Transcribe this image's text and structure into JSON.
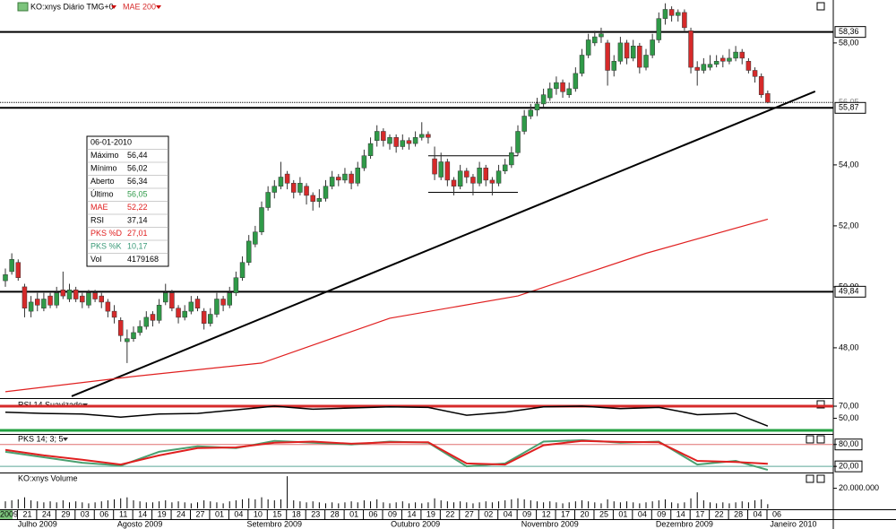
{
  "chart_data": {
    "type": "candlestick",
    "header": "KO:xnys Diário TMG+0",
    "ylim": [
      46.38,
      59.32
    ],
    "yticks": [
      {
        "value": 48,
        "label": "48,00"
      },
      {
        "value": 50,
        "label": "50,00"
      },
      {
        "value": 52,
        "label": "52,00"
      },
      {
        "value": 54,
        "label": "54,00"
      },
      {
        "value": 58,
        "label": "58,00"
      }
    ],
    "up_color": "#2f9a48",
    "down_color": "#d62a2a",
    "candles": [
      [
        50.2,
        50.6,
        50.0,
        50.4
      ],
      [
        50.5,
        51.1,
        50.4,
        50.9
      ],
      [
        50.8,
        50.9,
        50.2,
        50.3
      ],
      [
        50.0,
        50.1,
        49.0,
        49.3
      ],
      [
        49.2,
        49.7,
        49.0,
        49.5
      ],
      [
        49.6,
        49.8,
        49.2,
        49.4
      ],
      [
        49.3,
        49.8,
        49.2,
        49.6
      ],
      [
        49.7,
        49.8,
        49.3,
        49.4
      ],
      [
        49.4,
        50.0,
        49.3,
        49.8
      ],
      [
        49.9,
        50.5,
        49.6,
        49.7
      ],
      [
        49.6,
        50.1,
        49.5,
        49.9
      ],
      [
        49.9,
        50.0,
        49.5,
        49.6
      ],
      [
        49.7,
        49.8,
        49.3,
        49.5
      ],
      [
        49.4,
        49.9,
        49.3,
        49.8
      ],
      [
        49.8,
        49.9,
        49.5,
        49.6
      ],
      [
        49.7,
        49.8,
        49.3,
        49.5
      ],
      [
        49.5,
        49.6,
        49.0,
        49.2
      ],
      [
        49.2,
        49.4,
        48.8,
        49.0
      ],
      [
        48.9,
        49.0,
        48.2,
        48.4
      ],
      [
        48.2,
        48.6,
        47.5,
        48.3
      ],
      [
        48.3,
        48.7,
        48.2,
        48.5
      ],
      [
        48.5,
        48.9,
        48.4,
        48.7
      ],
      [
        48.7,
        49.2,
        48.6,
        49.0
      ],
      [
        49.1,
        49.2,
        48.7,
        48.9
      ],
      [
        48.9,
        49.6,
        48.8,
        49.4
      ],
      [
        49.5,
        50.1,
        49.4,
        49.8
      ],
      [
        49.8,
        49.9,
        49.2,
        49.3
      ],
      [
        49.3,
        49.4,
        48.8,
        49.0
      ],
      [
        49.0,
        49.4,
        48.9,
        49.2
      ],
      [
        49.2,
        49.7,
        49.1,
        49.5
      ],
      [
        49.6,
        49.7,
        49.2,
        49.3
      ],
      [
        49.2,
        49.3,
        48.6,
        48.8
      ],
      [
        48.8,
        49.3,
        48.7,
        49.1
      ],
      [
        49.1,
        49.8,
        49.0,
        49.6
      ],
      [
        49.6,
        49.7,
        49.2,
        49.4
      ],
      [
        49.4,
        50.0,
        49.3,
        49.8
      ],
      [
        49.8,
        50.5,
        49.7,
        50.3
      ],
      [
        50.3,
        51.0,
        50.2,
        50.8
      ],
      [
        50.8,
        51.7,
        50.7,
        51.5
      ],
      [
        51.4,
        52.0,
        51.3,
        51.8
      ],
      [
        51.8,
        52.8,
        51.7,
        52.6
      ],
      [
        52.6,
        53.3,
        52.5,
        53.1
      ],
      [
        53.1,
        53.5,
        52.9,
        53.3
      ],
      [
        53.3,
        54.1,
        53.2,
        53.6
      ],
      [
        53.7,
        53.8,
        53.2,
        53.4
      ],
      [
        53.4,
        53.5,
        52.9,
        53.1
      ],
      [
        53.1,
        53.6,
        53.0,
        53.4
      ],
      [
        53.3,
        53.4,
        52.7,
        53.0
      ],
      [
        53.0,
        53.1,
        52.5,
        52.8
      ],
      [
        52.8,
        53.2,
        52.6,
        52.9
      ],
      [
        52.9,
        53.5,
        52.8,
        53.3
      ],
      [
        53.3,
        53.8,
        53.2,
        53.6
      ],
      [
        53.6,
        53.7,
        53.3,
        53.5
      ],
      [
        53.5,
        53.9,
        53.4,
        53.7
      ],
      [
        53.7,
        53.8,
        53.2,
        53.4
      ],
      [
        53.4,
        54.1,
        53.3,
        53.9
      ],
      [
        53.9,
        54.5,
        53.8,
        54.3
      ],
      [
        54.3,
        54.9,
        54.2,
        54.7
      ],
      [
        54.8,
        55.3,
        54.6,
        55.1
      ],
      [
        55.1,
        55.2,
        54.6,
        54.8
      ],
      [
        54.7,
        55.0,
        54.5,
        54.9
      ],
      [
        54.9,
        55.0,
        54.4,
        54.6
      ],
      [
        54.6,
        55.0,
        54.5,
        54.8
      ],
      [
        54.8,
        54.9,
        54.5,
        54.7
      ],
      [
        54.7,
        55.1,
        54.6,
        54.9
      ],
      [
        54.9,
        55.4,
        54.8,
        55.0
      ],
      [
        55.0,
        55.1,
        54.7,
        54.9
      ],
      [
        54.2,
        54.6,
        53.5,
        53.7
      ],
      [
        53.6,
        54.4,
        53.5,
        54.1
      ],
      [
        54.1,
        54.2,
        53.3,
        53.5
      ],
      [
        53.5,
        53.6,
        53.0,
        53.3
      ],
      [
        53.3,
        54.0,
        53.2,
        53.8
      ],
      [
        53.8,
        53.9,
        53.4,
        53.6
      ],
      [
        53.6,
        53.7,
        53.0,
        53.4
      ],
      [
        53.4,
        54.1,
        53.3,
        53.9
      ],
      [
        53.9,
        54.0,
        53.3,
        53.5
      ],
      [
        53.5,
        53.6,
        53.0,
        53.4
      ],
      [
        53.4,
        54.0,
        53.3,
        53.8
      ],
      [
        53.8,
        54.2,
        53.7,
        54.0
      ],
      [
        54.0,
        54.6,
        53.9,
        54.4
      ],
      [
        54.4,
        55.3,
        54.3,
        55.1
      ],
      [
        55.1,
        55.8,
        55.0,
        55.6
      ],
      [
        55.6,
        56.0,
        55.5,
        55.8
      ],
      [
        55.8,
        56.2,
        55.6,
        56.0
      ],
      [
        56.0,
        56.5,
        55.9,
        56.3
      ],
      [
        56.2,
        56.7,
        56.1,
        56.5
      ],
      [
        56.5,
        56.9,
        56.3,
        56.7
      ],
      [
        56.7,
        56.8,
        56.2,
        56.4
      ],
      [
        56.3,
        56.7,
        56.2,
        56.5
      ],
      [
        56.5,
        57.2,
        56.4,
        57.0
      ],
      [
        57.0,
        57.8,
        56.9,
        57.6
      ],
      [
        57.6,
        58.3,
        57.5,
        58.1
      ],
      [
        58.0,
        58.4,
        57.9,
        58.2
      ],
      [
        58.2,
        58.5,
        58.0,
        58.3
      ],
      [
        58.0,
        58.1,
        56.6,
        57.1
      ],
      [
        57.1,
        57.6,
        56.9,
        57.4
      ],
      [
        57.4,
        58.2,
        57.3,
        58.0
      ],
      [
        58.0,
        58.1,
        57.3,
        57.5
      ],
      [
        57.5,
        58.1,
        57.4,
        57.9
      ],
      [
        57.9,
        58.0,
        57.0,
        57.2
      ],
      [
        57.2,
        57.8,
        57.1,
        57.6
      ],
      [
        57.6,
        58.3,
        57.5,
        58.1
      ],
      [
        58.1,
        59.0,
        58.0,
        58.8
      ],
      [
        58.8,
        59.3,
        58.6,
        59.1
      ],
      [
        59.1,
        59.2,
        58.7,
        58.9
      ],
      [
        58.9,
        59.1,
        58.7,
        59.0
      ],
      [
        59.0,
        59.1,
        58.4,
        58.5
      ],
      [
        58.4,
        58.5,
        57.0,
        57.2
      ],
      [
        57.2,
        57.4,
        56.6,
        57.1
      ],
      [
        57.1,
        57.5,
        57.0,
        57.3
      ],
      [
        57.2,
        57.6,
        57.1,
        57.3
      ],
      [
        57.3,
        57.6,
        57.2,
        57.4
      ],
      [
        57.5,
        57.6,
        57.2,
        57.4
      ],
      [
        57.4,
        57.8,
        57.3,
        57.5
      ],
      [
        57.5,
        57.9,
        57.4,
        57.7
      ],
      [
        57.7,
        57.8,
        57.3,
        57.5
      ],
      [
        57.4,
        57.5,
        57.0,
        57.1
      ],
      [
        57.1,
        57.2,
        56.7,
        56.9
      ],
      [
        56.9,
        57.0,
        56.2,
        56.3
      ],
      [
        56.34,
        56.44,
        56.02,
        56.05
      ]
    ],
    "overlay": {
      "name": "MAE 200",
      "color": "#e02020",
      "x": [
        0,
        20,
        40,
        60,
        80,
        100,
        119
      ],
      "values": [
        46.56,
        47.06,
        47.5,
        48.97,
        49.7,
        51.1,
        52.22
      ]
    },
    "levels": [
      {
        "value": 58.36,
        "label": "58,36"
      },
      {
        "value": 55.87,
        "label": "55,87"
      },
      {
        "value": 49.84,
        "label": "49,84"
      }
    ],
    "last": {
      "value": 56.05,
      "label": "56,05"
    },
    "trendline": [
      [
        10.35,
        46.41
      ],
      [
        126.4,
        56.41
      ]
    ],
    "box": {
      "x": [
        66,
        80
      ],
      "values": [
        54.3,
        53.1
      ]
    },
    "start_label": "2009",
    "date_ticks": [
      {
        "index": 3,
        "label": "21"
      },
      {
        "index": 6,
        "label": "24"
      },
      {
        "index": 9,
        "label": "29"
      },
      {
        "index": 12,
        "label": "03"
      },
      {
        "index": 15,
        "label": "06"
      },
      {
        "index": 18,
        "label": "11"
      },
      {
        "index": 21,
        "label": "14"
      },
      {
        "index": 24,
        "label": "19"
      },
      {
        "index": 27,
        "label": "24"
      },
      {
        "index": 30,
        "label": "27"
      },
      {
        "index": 33,
        "label": "01"
      },
      {
        "index": 36,
        "label": "04"
      },
      {
        "index": 39,
        "label": "10"
      },
      {
        "index": 42,
        "label": "15"
      },
      {
        "index": 45,
        "label": "18"
      },
      {
        "index": 48,
        "label": "23"
      },
      {
        "index": 51,
        "label": "28"
      },
      {
        "index": 54,
        "label": "01"
      },
      {
        "index": 57,
        "label": "06"
      },
      {
        "index": 60,
        "label": "09"
      },
      {
        "index": 63,
        "label": "14"
      },
      {
        "index": 66,
        "label": "19"
      },
      {
        "index": 69,
        "label": "22"
      },
      {
        "index": 72,
        "label": "27"
      },
      {
        "index": 75,
        "label": "02"
      },
      {
        "index": 78,
        "label": "04"
      },
      {
        "index": 81,
        "label": "09"
      },
      {
        "index": 84,
        "label": "12"
      },
      {
        "index": 87,
        "label": "17"
      },
      {
        "index": 90,
        "label": "20"
      },
      {
        "index": 93,
        "label": "25"
      },
      {
        "index": 96,
        "label": "01"
      },
      {
        "index": 99,
        "label": "04"
      },
      {
        "index": 102,
        "label": "09"
      },
      {
        "index": 105,
        "label": "14"
      },
      {
        "index": 108,
        "label": "17"
      },
      {
        "index": 111,
        "label": "22"
      },
      {
        "index": 114,
        "label": "28"
      },
      {
        "index": 117,
        "label": "04"
      },
      {
        "index": 120,
        "label": "06"
      }
    ],
    "months": [
      {
        "index": 5,
        "label": "Julho 2009"
      },
      {
        "index": 21,
        "label": "Agosto 2009"
      },
      {
        "index": 42,
        "label": "Setembro 2009"
      },
      {
        "index": 64,
        "label": "Outubro 2009"
      },
      {
        "index": 85,
        "label": "Novembro 2009"
      },
      {
        "index": 106,
        "label": "Dezembro 2009"
      },
      {
        "index": 123,
        "label": "Janeiro 2010"
      }
    ],
    "info": {
      "date": "06-01-2010",
      "rows": [
        {
          "label": "Máximo",
          "value": "56,44"
        },
        {
          "label": "Mínimo",
          "value": "56,02"
        },
        {
          "label": "Aberto",
          "value": "56,34"
        },
        {
          "label": "Último",
          "value": "56,05",
          "value_color": "#2f9a48"
        },
        {
          "label": "MAE",
          "value": "52,22",
          "color": "#e02020",
          "value_color": "#e02020"
        },
        {
          "label": "RSI",
          "value": "37,14"
        },
        {
          "label": "PKS %D",
          "value": "27,01",
          "color": "#e02020",
          "value_color": "#e02020"
        },
        {
          "label": "PKS %K",
          "value": "10,17",
          "color": "#3a9a78",
          "value_color": "#3a9a78"
        },
        {
          "label": "Vol",
          "value": 4179168
        }
      ]
    },
    "rsi": {
      "title": "RSI 14 Suavizado",
      "ylim": [
        25.6,
        80.4
      ],
      "yticks": [
        {
          "value": 70,
          "label": "70,00"
        },
        {
          "value": 50,
          "label": "50,00"
        }
      ],
      "levels": [
        {
          "value": 70,
          "color": "#d62a2a"
        },
        {
          "value": 30,
          "color": "#22a040"
        }
      ],
      "color": "#000000",
      "x": [
        0,
        6,
        12,
        18,
        24,
        30,
        36,
        42,
        48,
        54,
        60,
        66,
        72,
        78,
        84,
        90,
        96,
        102,
        108,
        114,
        119
      ],
      "values": [
        60,
        58,
        57,
        52,
        57,
        58,
        64,
        70,
        65,
        67,
        69,
        68,
        55,
        60,
        69,
        70,
        66,
        68,
        56,
        58,
        37.14
      ]
    },
    "stoch": {
      "title": "PKS 14; 3; 5",
      "ylim": [
        5.6,
        106.4
      ],
      "yticks": [
        {
          "value": 80,
          "label": "80,00"
        },
        {
          "value": 20,
          "label": "20,00"
        }
      ],
      "levels": [
        {
          "value": 80,
          "color": "#e07070"
        },
        {
          "value": 20,
          "color": "#5aa898"
        }
      ],
      "x": [
        0,
        6,
        12,
        18,
        24,
        30,
        36,
        42,
        48,
        54,
        60,
        66,
        72,
        78,
        84,
        90,
        96,
        102,
        108,
        114,
        119
      ],
      "series": [
        {
          "name": "PKS %K",
          "color": "#4aa070",
          "values": [
            60,
            45,
            30,
            22,
            60,
            75,
            70,
            90,
            85,
            80,
            88,
            85,
            20,
            28,
            88,
            92,
            85,
            88,
            25,
            35,
            10.17
          ]
        },
        {
          "name": "PKS %D",
          "color": "#e02020",
          "values": [
            65,
            50,
            38,
            25,
            50,
            70,
            72,
            85,
            88,
            82,
            86,
            86,
            28,
            25,
            78,
            90,
            87,
            86,
            35,
            32,
            27.01
          ]
        }
      ]
    },
    "volume": {
      "title": "KO:xnys Volume",
      "ylim": [
        0,
        34800000
      ],
      "yticks": [
        {
          "value": 20000000,
          "label": "20.000.000"
        }
      ],
      "values": [
        7000000.0,
        8000000.0,
        9000000.0,
        11000000.0,
        8000000.0,
        7000000.0,
        6000000.0,
        7000000.0,
        6000000.0,
        8000000.0,
        6000000.0,
        7000000.0,
        6000000.0,
        5000000.0,
        6000000.0,
        7000000.0,
        8000000.0,
        9000000.0,
        10000000.0,
        11000000.0,
        8000000.0,
        7000000.0,
        6000000.0,
        6000000.0,
        7000000.0,
        8000000.0,
        6000000.0,
        7000000.0,
        6000000.0,
        5000000.0,
        6000000.0,
        8000000.0,
        7000000.0,
        6000000.0,
        5000000.0,
        7000000.0,
        8000000.0,
        9000000.0,
        10000000.0,
        9000000.0,
        11000000.0,
        9000000.0,
        8000000.0,
        9000000.0,
        32000000.0,
        8000000.0,
        7000000.0,
        6000000.0,
        7000000.0,
        6000000.0,
        5000000.0,
        6000000.0,
        5000000.0,
        6000000.0,
        7000000.0,
        6000000.0,
        8000000.0,
        7000000.0,
        9000000.0,
        6000000.0,
        5000000.0,
        6000000.0,
        7000000.0,
        5000000.0,
        6000000.0,
        5000000.0,
        6000000.0,
        10000000.0,
        8000000.0,
        7000000.0,
        6000000.0,
        7000000.0,
        6000000.0,
        5000000.0,
        6000000.0,
        7000000.0,
        6000000.0,
        7000000.0,
        8000000.0,
        9000000.0,
        10000000.0,
        9000000.0,
        8000000.0,
        7000000.0,
        6000000.0,
        7000000.0,
        6000000.0,
        5000000.0,
        6000000.0,
        7000000.0,
        8000000.0,
        7000000.0,
        6000000.0,
        5000000.0,
        9000000.0,
        7000000.0,
        6000000.0,
        7000000.0,
        6000000.0,
        5000000.0,
        6000000.0,
        7000000.0,
        8000000.0,
        9000000.0,
        6000000.0,
        5000000.0,
        6000000.0,
        10000000.0,
        16000000.0,
        8000000.0,
        6000000.0,
        5000000.0,
        6000000.0,
        5000000.0,
        6000000.0,
        7000000.0,
        6000000.0,
        8000000.0,
        9000000.0,
        4179168
      ]
    }
  }
}
